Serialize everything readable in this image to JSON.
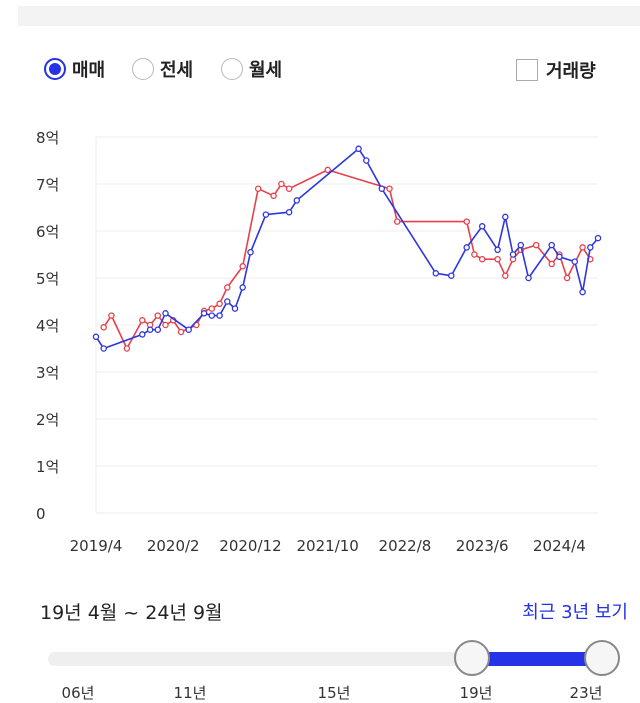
{
  "options": {
    "radios": [
      {
        "label": "매매",
        "selected": true
      },
      {
        "label": "전세",
        "selected": false
      },
      {
        "label": "월세",
        "selected": false
      }
    ],
    "volume_label": "거래량",
    "volume_checked": false
  },
  "chart_data": {
    "type": "line",
    "title": "",
    "xlabel": "",
    "ylabel": "",
    "y_ticks": [
      "0",
      "1억",
      "2억",
      "3억",
      "4억",
      "5억",
      "6억",
      "7억",
      "8억"
    ],
    "ylim": [
      0,
      8
    ],
    "x_ticks": [
      "2019/4",
      "2020/2",
      "2020/12",
      "2021/10",
      "2022/8",
      "2023/6",
      "2024/4"
    ],
    "xlim": [
      "2019-04",
      "2024-09"
    ],
    "grid": true,
    "colors": {
      "red": "#e8404a",
      "blue": "#2e36e0"
    },
    "series": [
      {
        "color": "#e8404a",
        "points": [
          [
            "2019-05",
            3.95
          ],
          [
            "2019-06",
            4.2
          ],
          [
            "2019-08",
            3.5
          ],
          [
            "2019-10",
            4.1
          ],
          [
            "2019-11",
            4.0
          ],
          [
            "2019-12",
            4.2
          ],
          [
            "2020-01",
            4.0
          ],
          [
            "2020-02",
            4.1
          ],
          [
            "2020-03",
            3.85
          ],
          [
            "2020-05",
            4.0
          ],
          [
            "2020-06",
            4.3
          ],
          [
            "2020-07",
            4.35
          ],
          [
            "2020-08",
            4.45
          ],
          [
            "2020-09",
            4.8
          ],
          [
            "2020-11",
            5.25
          ],
          [
            "2021-01",
            6.9
          ],
          [
            "2021-03",
            6.75
          ],
          [
            "2021-04",
            7.0
          ],
          [
            "2021-05",
            6.9
          ],
          [
            "2021-10",
            7.3
          ],
          [
            "2022-06",
            6.9
          ],
          [
            "2022-07",
            6.2
          ],
          [
            "2023-04",
            6.2
          ],
          [
            "2023-05",
            5.5
          ],
          [
            "2023-06",
            5.4
          ],
          [
            "2023-08",
            5.4
          ],
          [
            "2023-09",
            5.05
          ],
          [
            "2023-10",
            5.4
          ],
          [
            "2023-11",
            5.6
          ],
          [
            "2024-01",
            5.7
          ],
          [
            "2024-03",
            5.3
          ],
          [
            "2024-04",
            5.5
          ],
          [
            "2024-05",
            5.0
          ],
          [
            "2024-07",
            5.65
          ],
          [
            "2024-08",
            5.4
          ]
        ]
      },
      {
        "color": "#2e36e0",
        "points": [
          [
            "2019-04",
            3.75
          ],
          [
            "2019-05",
            3.5
          ],
          [
            "2019-10",
            3.8
          ],
          [
            "2019-11",
            3.9
          ],
          [
            "2019-12",
            3.9
          ],
          [
            "2020-01",
            4.25
          ],
          [
            "2020-04",
            3.9
          ],
          [
            "2020-06",
            4.25
          ],
          [
            "2020-07",
            4.2
          ],
          [
            "2020-08",
            4.2
          ],
          [
            "2020-09",
            4.5
          ],
          [
            "2020-10",
            4.35
          ],
          [
            "2020-11",
            4.8
          ],
          [
            "2020-12",
            5.55
          ],
          [
            "2021-02",
            6.35
          ],
          [
            "2021-05",
            6.4
          ],
          [
            "2021-06",
            6.65
          ],
          [
            "2022-02",
            7.75
          ],
          [
            "2022-03",
            7.5
          ],
          [
            "2022-05",
            6.9
          ],
          [
            "2022-12",
            5.1
          ],
          [
            "2023-02",
            5.05
          ],
          [
            "2023-04",
            5.65
          ],
          [
            "2023-06",
            6.1
          ],
          [
            "2023-08",
            5.6
          ],
          [
            "2023-09",
            6.3
          ],
          [
            "2023-10",
            5.5
          ],
          [
            "2023-11",
            5.7
          ],
          [
            "2023-12",
            5.0
          ],
          [
            "2024-03",
            5.7
          ],
          [
            "2024-04",
            5.45
          ],
          [
            "2024-06",
            5.35
          ],
          [
            "2024-07",
            4.7
          ],
          [
            "2024-08",
            5.65
          ],
          [
            "2024-09",
            5.85
          ]
        ]
      }
    ]
  },
  "range": {
    "label": "19년 4월 ~ 24년 9월",
    "recent_link": "최근 3년 보기",
    "slider_ticks": [
      "06년",
      "11년",
      "15년",
      "19년",
      "23년"
    ],
    "start_year": 2019,
    "end_year": 2024
  }
}
